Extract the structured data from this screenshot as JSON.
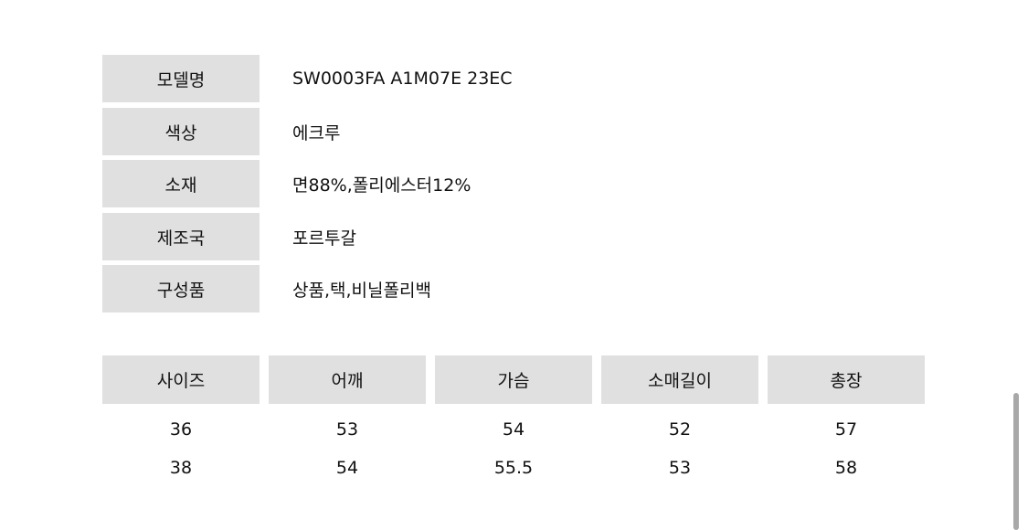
{
  "specs": [
    {
      "label": "모델명",
      "value": "SW0003FA A1M07E 23EC"
    },
    {
      "label": "색상",
      "value": "에크루"
    },
    {
      "label": "소재",
      "value": "면88%,폴리에스터12%"
    },
    {
      "label": "제조국",
      "value": "포르투갈"
    },
    {
      "label": "구성품",
      "value": "상품,택,비닐폴리백"
    }
  ],
  "size_table": {
    "headers": [
      "사이즈",
      "어깨",
      "가슴",
      "소매길이",
      "총장"
    ],
    "rows": [
      [
        "36",
        "53",
        "54",
        "52",
        "57"
      ],
      [
        "38",
        "54",
        "55.5",
        "53",
        "58"
      ]
    ]
  }
}
